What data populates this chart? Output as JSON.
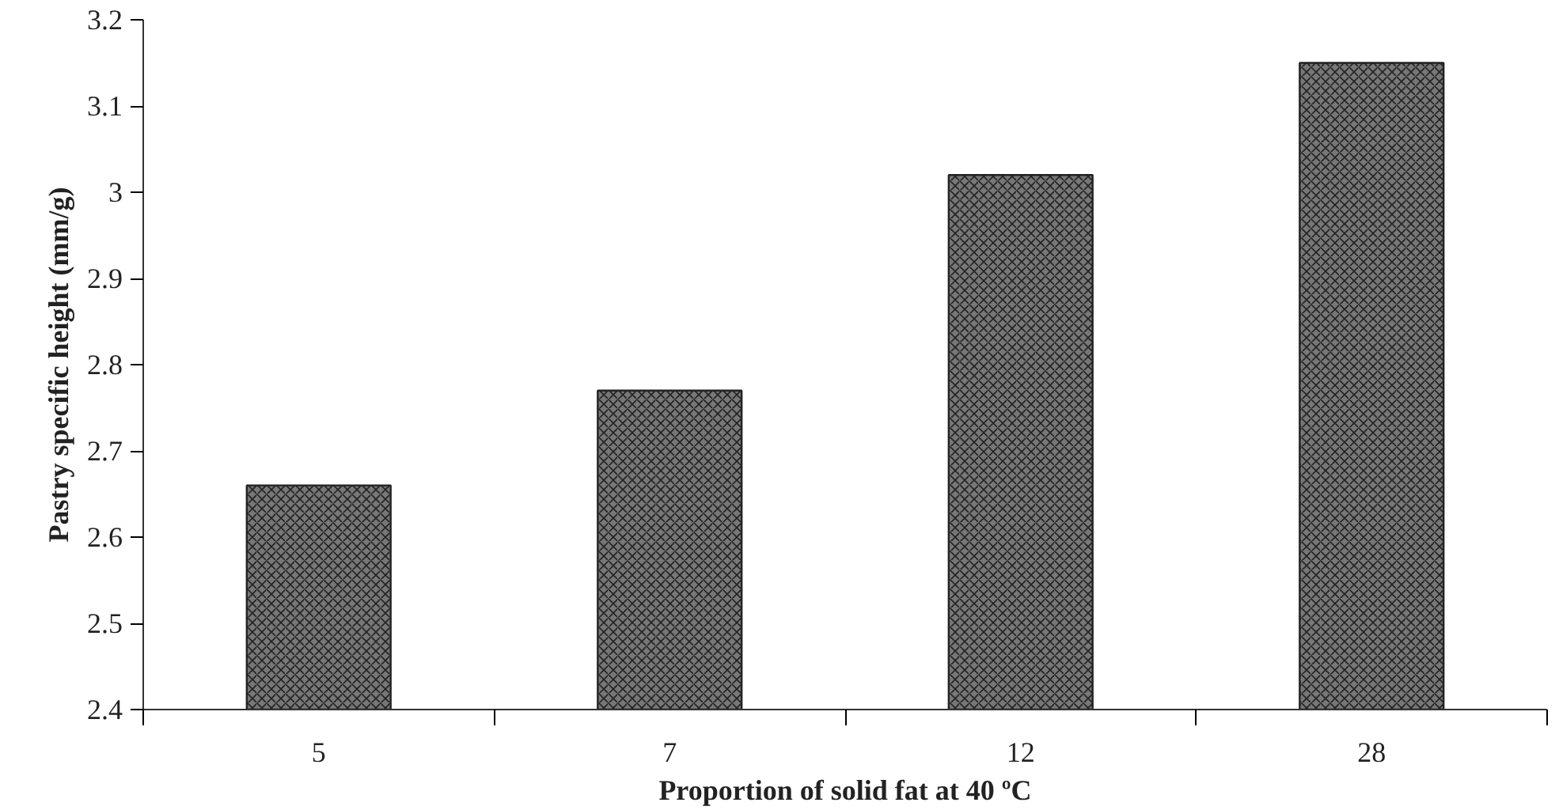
{
  "chart_data": {
    "type": "bar",
    "xlabel": "Proportion of solid fat at 40 ºC",
    "ylabel": "Pastry specific height (mm/g)",
    "categories": [
      "5",
      "7",
      "12",
      "28"
    ],
    "values": [
      2.66,
      2.77,
      3.02,
      3.15
    ],
    "color": "#777777",
    "ylim": [
      2.4,
      3.2
    ],
    "yticks": [
      2.4,
      2.5,
      2.6,
      2.7,
      2.8,
      2.9,
      3,
      3.1,
      3.2
    ],
    "grid": false
  }
}
